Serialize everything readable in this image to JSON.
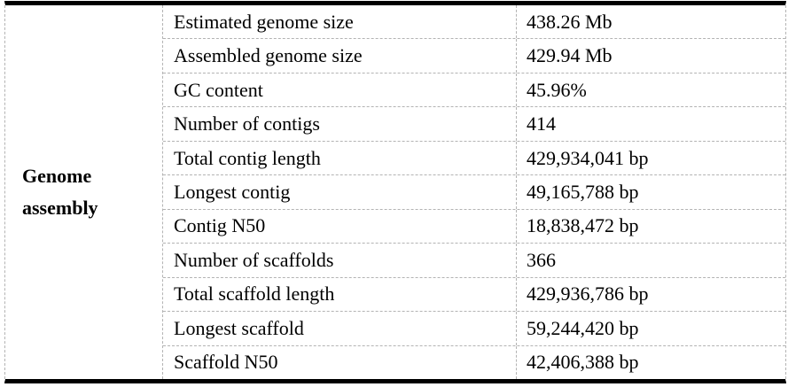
{
  "table": {
    "row_header": "Genome assembly",
    "rows": [
      {
        "label": "Estimated genome size",
        "value": "438.26 Mb"
      },
      {
        "label": "Assembled genome size",
        "value": "429.94 Mb"
      },
      {
        "label": "GC content",
        "value": "45.96%"
      },
      {
        "label": "Number of contigs",
        "value": "414"
      },
      {
        "label": "Total contig length",
        "value": "429,934,041 bp"
      },
      {
        "label": "Longest contig",
        "value": "49,165,788 bp"
      },
      {
        "label": "Contig N50",
        "value": "18,838,472 bp"
      },
      {
        "label": "Number of scaffolds",
        "value": "366"
      },
      {
        "label": "Total scaffold length",
        "value": "429,936,786 bp"
      },
      {
        "label": "Longest scaffold",
        "value": "59,244,420 bp"
      },
      {
        "label": "Scaffold N50",
        "value": "42,406,388 bp"
      }
    ],
    "colors": {
      "background": "#ffffff",
      "text": "#000000",
      "outer_border": "#000000",
      "gridline": "#b3b3b3"
    }
  }
}
